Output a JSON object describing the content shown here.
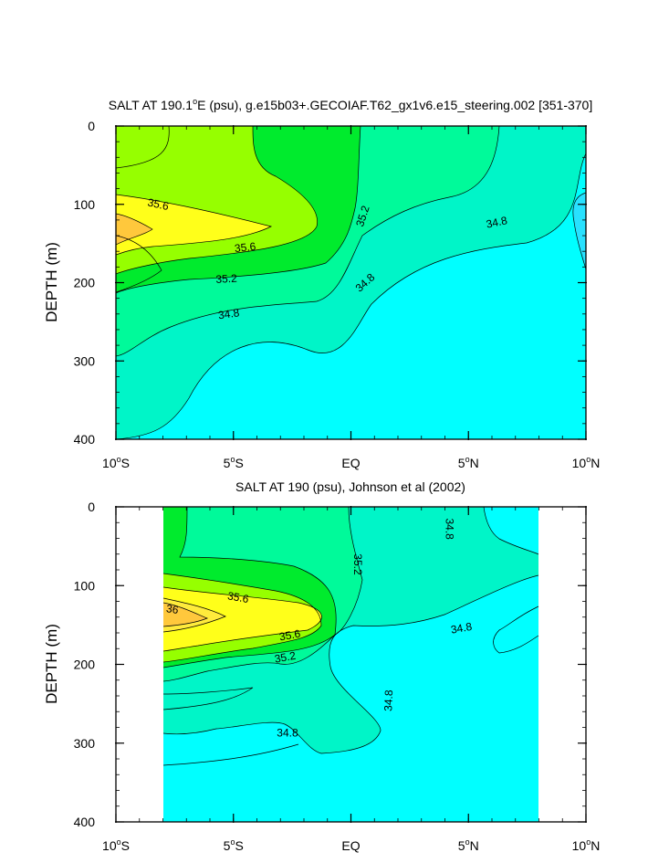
{
  "colors": {
    "s_lt_34_8": "#00ffff",
    "s_34_8_35_0": "#00f5c8",
    "s_35_0_35_2": "#00fa9a",
    "s_35_2_35_4": "#00eb2d",
    "s_35_4_35_6": "#96ff00",
    "s_35_6_35_8": "#ffff1a",
    "s_35_8_36_0": "#ffeb3c",
    "s_ge_36_0": "#ffc83c",
    "s_deep_patch": "#28e1ff"
  },
  "chart_data": [
    {
      "type": "contour",
      "title": "SALT AT 190.1°E (psu), g.e15b03+.GECOIAF.T62_gx1v6.e15_steering.002 [351-370]",
      "title_parts": {
        "before_degree": "SALT AT 190.1",
        "degree": "o",
        "after_degree": "E (psu), g.e15b03+.GECOIAF.T62_gx1v6.e15_steering.002 [351-370]"
      },
      "xlabel": "",
      "ylabel": "DEPTH (m)",
      "xlim": [
        -10,
        10
      ],
      "ylim": [
        400,
        0
      ],
      "x_ticks": [
        {
          "value": -10,
          "num": "10",
          "sup": "o",
          "hemi": "S"
        },
        {
          "value": -5,
          "num": "5",
          "sup": "o",
          "hemi": "S"
        },
        {
          "value": 0,
          "num": "EQ",
          "sup": "",
          "hemi": ""
        },
        {
          "value": 5,
          "num": "5",
          "sup": "o",
          "hemi": "N"
        },
        {
          "value": 10,
          "num": "10",
          "sup": "o",
          "hemi": "N"
        }
      ],
      "y_ticks": [
        0,
        100,
        200,
        300,
        400
      ],
      "contour_levels": [
        34.8,
        35.0,
        35.2,
        35.4,
        35.6,
        35.8,
        36.0
      ],
      "contour_labels": [
        {
          "text": "35.6",
          "lat": -8.2,
          "depth": 100,
          "rot": 12
        },
        {
          "text": "35.6",
          "lat": -4.5,
          "depth": 155,
          "rot": -6
        },
        {
          "text": "35.2",
          "lat": 0.5,
          "depth": 115,
          "rot": -72
        },
        {
          "text": "35.2",
          "lat": -5.3,
          "depth": 195,
          "rot": -3
        },
        {
          "text": "34.8",
          "lat": 0.6,
          "depth": 200,
          "rot": -42
        },
        {
          "text": "34.8",
          "lat": -5.2,
          "depth": 240,
          "rot": -8
        },
        {
          "text": "34.8",
          "lat": 6.2,
          "depth": 123,
          "rot": -12
        }
      ]
    },
    {
      "type": "contour",
      "title": "SALT AT 190 (psu), Johnson et al (2002)",
      "xlabel": "",
      "ylabel": "DEPTH (m)",
      "xlim": [
        -10,
        10
      ],
      "ylim": [
        400,
        0
      ],
      "data_lat_range": [
        -8,
        8
      ],
      "x_ticks": [
        {
          "value": -10,
          "num": "10",
          "sup": "o",
          "hemi": "S"
        },
        {
          "value": -5,
          "num": "5",
          "sup": "o",
          "hemi": "S"
        },
        {
          "value": 0,
          "num": "EQ",
          "sup": "",
          "hemi": ""
        },
        {
          "value": 5,
          "num": "5",
          "sup": "o",
          "hemi": "N"
        },
        {
          "value": 10,
          "num": "10",
          "sup": "o",
          "hemi": "N"
        }
      ],
      "y_ticks": [
        0,
        100,
        200,
        300,
        400
      ],
      "contour_levels": [
        34.8,
        35.0,
        35.2,
        35.4,
        35.6,
        35.8,
        36.0
      ],
      "contour_labels": [
        {
          "text": "36",
          "lat": -7.6,
          "depth": 130,
          "rot": 8
        },
        {
          "text": "35.6",
          "lat": -4.8,
          "depth": 115,
          "rot": 10
        },
        {
          "text": "35.6",
          "lat": -2.6,
          "depth": 163,
          "rot": -10
        },
        {
          "text": "35.2",
          "lat": -2.8,
          "depth": 191,
          "rot": -10
        },
        {
          "text": "35.2",
          "lat": 0.3,
          "depth": 73,
          "rot": 90
        },
        {
          "text": "34.8",
          "lat": -2.7,
          "depth": 287,
          "rot": 0
        },
        {
          "text": "34.8",
          "lat": 1.6,
          "depth": 246,
          "rot": -88
        },
        {
          "text": "34.8",
          "lat": 4.7,
          "depth": 154,
          "rot": -10
        },
        {
          "text": "34.8",
          "lat": 4.2,
          "depth": 28,
          "rot": 90
        }
      ]
    }
  ]
}
